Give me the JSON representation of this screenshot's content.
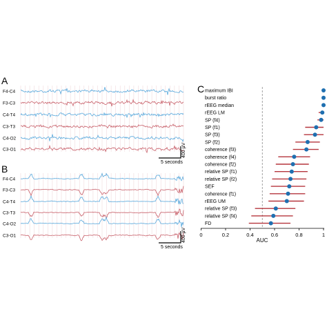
{
  "panels": {
    "a": {
      "letter": "A",
      "channels": [
        "F4-C4",
        "F3-C3",
        "C4-T4",
        "C3-T3",
        "C4-O2",
        "C3-O1"
      ],
      "time_scale": "5 seconds",
      "amp_scale": "400 µV"
    },
    "b": {
      "letter": "B",
      "channels": [
        "F4-C4",
        "F3-C3",
        "C4-T4",
        "C3-T3",
        "C4-O2",
        "C3-O1"
      ],
      "time_scale": "5 seconds",
      "amp_scale": "400 µV"
    },
    "c": {
      "letter": "C"
    }
  },
  "colors": {
    "blue_trace": "#5aa9dc",
    "red_trace": "#c8606a",
    "gridline": "#f0d8dc",
    "point": "#1f6fb0",
    "interval": "#b5343c",
    "reference": "#888888"
  },
  "chart_data": {
    "type": "scatter",
    "subtype": "forest-plot",
    "xlabel": "AUC",
    "xlim": [
      0,
      1
    ],
    "xticks": [
      "0",
      "0.2",
      "0.4",
      "0.6",
      "0.8",
      "1"
    ],
    "reference_line": 0.5,
    "features": [
      {
        "label": "maximum IBI",
        "auc": 1.0,
        "ci": [
          0.99,
          1.0
        ]
      },
      {
        "label": "burst ratio",
        "auc": 1.0,
        "ci": [
          0.99,
          1.0
        ]
      },
      {
        "label": "rEEG median",
        "auc": 1.0,
        "ci": [
          0.99,
          1.0
        ]
      },
      {
        "label": "rEEG LM",
        "auc": 0.99,
        "ci": [
          0.96,
          1.0
        ]
      },
      {
        "label": "SP (f4)",
        "auc": 0.98,
        "ci": [
          0.95,
          1.0
        ]
      },
      {
        "label": "SP (f1)",
        "auc": 0.94,
        "ci": [
          0.85,
          1.0
        ]
      },
      {
        "label": "SP (f3)",
        "auc": 0.93,
        "ci": [
          0.84,
          1.0
        ]
      },
      {
        "label": "SP (f2)",
        "auc": 0.87,
        "ci": [
          0.77,
          0.97
        ]
      },
      {
        "label": "coherence (f3)",
        "auc": 0.86,
        "ci": [
          0.75,
          0.96
        ]
      },
      {
        "label": "coherence (f4)",
        "auc": 0.76,
        "ci": [
          0.63,
          0.89
        ]
      },
      {
        "label": "coherence (f2)",
        "auc": 0.75,
        "ci": [
          0.61,
          0.88
        ]
      },
      {
        "label": "relative SP (f1)",
        "auc": 0.74,
        "ci": [
          0.6,
          0.87
        ]
      },
      {
        "label": "relative SP (f2)",
        "auc": 0.73,
        "ci": [
          0.58,
          0.86
        ]
      },
      {
        "label": "SEF",
        "auc": 0.72,
        "ci": [
          0.57,
          0.85
        ]
      },
      {
        "label": "coherence (f1)",
        "auc": 0.71,
        "ci": [
          0.56,
          0.85
        ]
      },
      {
        "label": "rEEG UM",
        "auc": 0.7,
        "ci": [
          0.55,
          0.84
        ]
      },
      {
        "label": "relative SP (f3)",
        "auc": 0.61,
        "ci": [
          0.44,
          0.77
        ]
      },
      {
        "label": "relative SP (f4)",
        "auc": 0.59,
        "ci": [
          0.41,
          0.75
        ]
      },
      {
        "label": "FD",
        "auc": 0.57,
        "ci": [
          0.39,
          0.73
        ]
      }
    ]
  }
}
